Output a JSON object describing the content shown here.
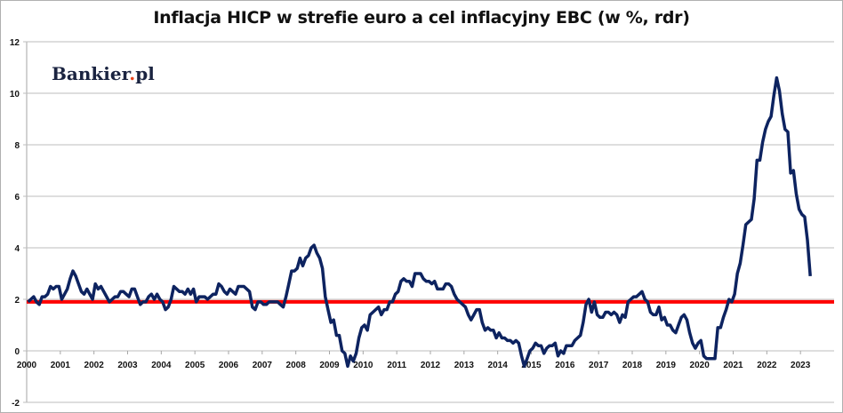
{
  "chart_data": {
    "type": "line",
    "title": "Inflacja HICP w strefie euro a cel inflacyjny EBC (w %, rdr)",
    "xlabel": "",
    "ylabel": "",
    "ylim": [
      -2,
      12
    ],
    "yticks": [
      "-2",
      "0",
      "2",
      "4",
      "6",
      "8",
      "10",
      "12"
    ],
    "xticks": [
      "2000",
      "2001",
      "2002",
      "2003",
      "2004",
      "2005",
      "2006",
      "2007",
      "2008",
      "2009",
      "2010",
      "2011",
      "2012",
      "2013",
      "2014",
      "2015",
      "2016",
      "2017",
      "2018",
      "2019",
      "2020",
      "2021",
      "2022",
      "2023"
    ],
    "xlim": [
      "2000-01",
      "2023-12"
    ],
    "grid": true,
    "legend": "none",
    "watermark": "Bankier.pl",
    "series": [
      {
        "name": "Inflacja HICP (rdr, %)",
        "color": "#0d2360",
        "start": "2000-01",
        "frequency": "monthly",
        "values": [
          1.9,
          2.0,
          2.1,
          1.9,
          1.8,
          2.1,
          2.1,
          2.2,
          2.5,
          2.4,
          2.5,
          2.5,
          2.0,
          2.2,
          2.4,
          2.8,
          3.1,
          2.9,
          2.6,
          2.3,
          2.2,
          2.4,
          2.2,
          2.0,
          2.6,
          2.4,
          2.5,
          2.3,
          2.1,
          1.9,
          2.0,
          2.1,
          2.1,
          2.3,
          2.3,
          2.2,
          2.1,
          2.4,
          2.4,
          2.1,
          1.8,
          1.9,
          1.9,
          2.1,
          2.2,
          2.0,
          2.2,
          2.0,
          1.9,
          1.6,
          1.7,
          2.0,
          2.5,
          2.4,
          2.3,
          2.3,
          2.2,
          2.4,
          2.2,
          2.4,
          1.9,
          2.1,
          2.1,
          2.1,
          2.0,
          2.1,
          2.2,
          2.2,
          2.6,
          2.5,
          2.3,
          2.2,
          2.4,
          2.3,
          2.2,
          2.5,
          2.5,
          2.5,
          2.4,
          2.3,
          1.7,
          1.6,
          1.9,
          1.9,
          1.8,
          1.8,
          1.9,
          1.9,
          1.9,
          1.9,
          1.8,
          1.7,
          2.1,
          2.6,
          3.1,
          3.1,
          3.2,
          3.6,
          3.3,
          3.6,
          3.7,
          4.0,
          4.1,
          3.8,
          3.6,
          3.2,
          2.1,
          1.6,
          1.1,
          1.2,
          0.6,
          0.6,
          0.0,
          -0.1,
          -0.6,
          -0.2,
          -0.4,
          -0.1,
          0.5,
          0.9,
          1.0,
          0.8,
          1.4,
          1.5,
          1.6,
          1.7,
          1.4,
          1.6,
          1.6,
          1.9,
          1.9,
          2.2,
          2.3,
          2.7,
          2.8,
          2.7,
          2.7,
          2.5,
          3.0,
          3.0,
          3.0,
          2.8,
          2.7,
          2.7,
          2.6,
          2.7,
          2.4,
          2.4,
          2.4,
          2.6,
          2.6,
          2.5,
          2.2,
          2.0,
          1.9,
          1.8,
          1.7,
          1.4,
          1.2,
          1.4,
          1.6,
          1.6,
          1.1,
          0.8,
          0.9,
          0.8,
          0.8,
          0.5,
          0.7,
          0.5,
          0.5,
          0.4,
          0.4,
          0.3,
          0.4,
          0.3,
          -0.2,
          -0.6,
          -0.3,
          0.0,
          0.1,
          0.3,
          0.2,
          0.2,
          -0.1,
          0.1,
          0.2,
          0.2,
          0.3,
          -0.2,
          0.0,
          -0.1,
          0.2,
          0.2,
          0.2,
          0.4,
          0.5,
          0.6,
          1.1,
          1.8,
          2.0,
          1.5,
          1.9,
          1.4,
          1.3,
          1.3,
          1.5,
          1.5,
          1.4,
          1.5,
          1.4,
          1.1,
          1.4,
          1.3,
          1.9,
          2.0,
          2.1,
          2.1,
          2.2,
          2.3,
          2.0,
          1.9,
          1.5,
          1.4,
          1.4,
          1.7,
          1.2,
          1.3,
          1.0,
          1.0,
          0.8,
          0.7,
          1.0,
          1.3,
          1.4,
          1.2,
          0.7,
          0.3,
          0.1,
          0.3,
          0.4,
          -0.2,
          -0.3,
          -0.3,
          -0.3,
          -0.3,
          0.9,
          0.9,
          1.3,
          1.6,
          2.0,
          1.9,
          2.2,
          3.0,
          3.4,
          4.1,
          4.9,
          5.0,
          5.1,
          5.9,
          7.4,
          7.4,
          8.1,
          8.6,
          8.9,
          9.1,
          9.9,
          10.6,
          10.1,
          9.2,
          8.6,
          8.5,
          6.9,
          7.0,
          6.1,
          5.5,
          5.3,
          5.2,
          4.3,
          2.9
        ]
      },
      {
        "name": "Cel inflacyjny EBC",
        "color": "#ff0000",
        "constant": 1.9
      }
    ]
  }
}
